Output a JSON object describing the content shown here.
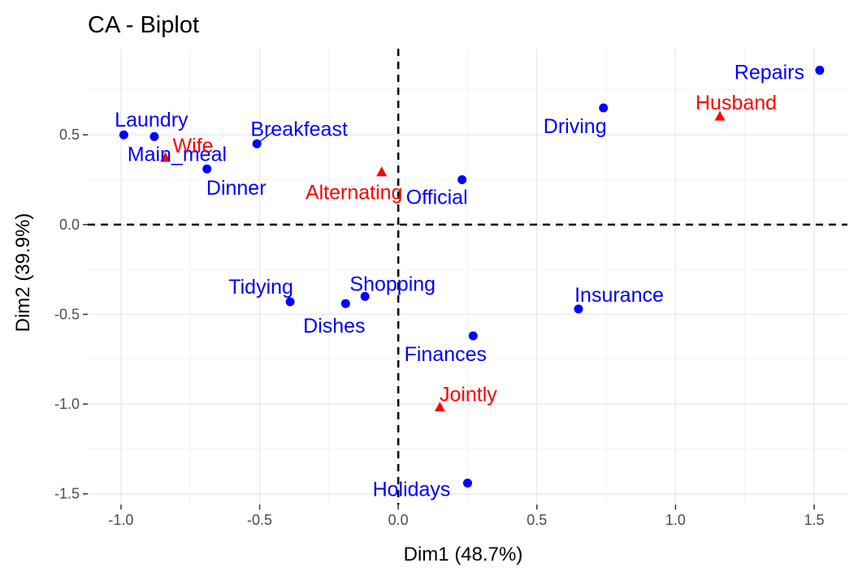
{
  "chart_data": {
    "type": "scatter",
    "title": "CA - Biplot",
    "xlabel": "Dim1 (48.7%)",
    "ylabel": "Dim2 (39.9%)",
    "xlim": [
      -1.12,
      1.62
    ],
    "ylim": [
      -1.56,
      0.98
    ],
    "xticks": [
      -1.0,
      -0.5,
      0.0,
      0.5,
      1.0,
      1.5
    ],
    "xtick_labels": [
      "-1.0",
      "-0.5",
      "0.0",
      "0.5",
      "1.0",
      "1.5"
    ],
    "yticks": [
      -1.5,
      -1.0,
      -0.5,
      0.0,
      0.5
    ],
    "ytick_labels": [
      "-1.5",
      "-1.0",
      "-0.5",
      "0.0",
      "0.5"
    ],
    "grid": true,
    "reference_lines": {
      "x": 0,
      "y": 0,
      "style": "dashed"
    },
    "colors": {
      "rows": "#0000ff",
      "columns": "#ff0000"
    },
    "series": [
      {
        "marker": "circle",
        "color": "#0000ff",
        "points": [
          {
            "label": "Laundry",
            "x": -0.99,
            "y": 0.5
          },
          {
            "label": "Main_meal",
            "x": -0.88,
            "y": 0.49
          },
          {
            "label": "Dinner",
            "x": -0.69,
            "y": 0.31
          },
          {
            "label": "Breakfeast",
            "x": -0.51,
            "y": 0.45
          },
          {
            "label": "Tidying",
            "x": -0.39,
            "y": -0.43
          },
          {
            "label": "Dishes",
            "x": -0.19,
            "y": -0.44
          },
          {
            "label": "Shopping",
            "x": -0.12,
            "y": -0.4
          },
          {
            "label": "Official",
            "x": 0.23,
            "y": 0.25
          },
          {
            "label": "Driving",
            "x": 0.74,
            "y": 0.65
          },
          {
            "label": "Finances",
            "x": 0.27,
            "y": -0.62
          },
          {
            "label": "Insurance",
            "x": 0.65,
            "y": -0.47
          },
          {
            "label": "Repairs",
            "x": 1.52,
            "y": 0.86
          },
          {
            "label": "Holidays",
            "x": 0.25,
            "y": -1.44
          }
        ]
      },
      {
        "marker": "triangle",
        "color": "#ff0000",
        "points": [
          {
            "label": "Wife",
            "x": -0.84,
            "y": 0.37
          },
          {
            "label": "Alternating",
            "x": -0.06,
            "y": 0.29
          },
          {
            "label": "Jointly",
            "x": 0.15,
            "y": -1.02
          },
          {
            "label": "Husband",
            "x": 1.16,
            "y": 0.6
          }
        ]
      }
    ]
  }
}
